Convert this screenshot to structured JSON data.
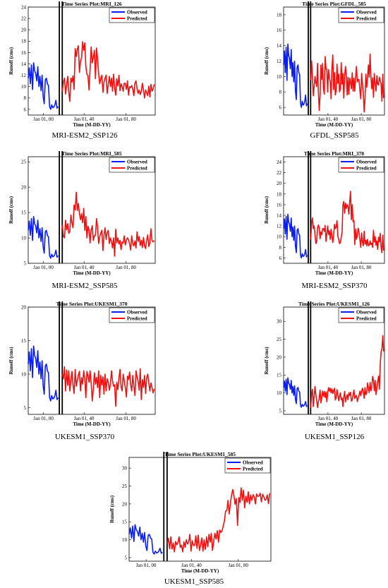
{
  "colors": {
    "observed": "#0a1ef0",
    "predicted": "#ee1111",
    "divider": "#000000",
    "axis": "#000000"
  },
  "chart_data": [
    {
      "type": "line",
      "title": "Time Series Plot:MRI_126",
      "caption": "MRI-ESM2_SSP126",
      "xlabel": "Time (M-DD-YY)",
      "ylabel": "Runoff (cms)",
      "ylim": [
        5,
        24
      ],
      "yticks": [
        "6",
        "8",
        "10",
        "12",
        "14",
        "16",
        "18",
        "20",
        "22",
        "24"
      ],
      "xticks": [
        "Jan 01, 00",
        "Jan 01, 40",
        "Jan 01, 80"
      ],
      "legend": {
        "position": "top-right",
        "entries": [
          "Observed",
          "Predicted"
        ]
      },
      "series": [
        {
          "name": "Observed",
          "values": [
            11.5,
            13.3,
            10.5,
            13.8,
            9.5,
            14.2,
            12.8,
            12.3,
            11.0,
            13.5,
            10.0,
            11.8,
            9.3,
            12.0,
            8.2,
            7.0,
            11.2,
            11.5,
            10.5,
            10.2,
            6.5,
            6.0,
            6.8,
            6.3,
            6.4,
            6.8,
            7.6,
            6.2,
            6.5
          ]
        },
        {
          "name": "Predicted",
          "values": [
            9.2,
            10.8,
            11.5,
            8.7,
            10.3,
            11.8,
            9.0,
            7.4,
            11.5,
            10.8,
            11.9,
            9.5,
            16.7,
            15.3,
            16.6,
            17.2,
            12.5,
            14.5,
            15.0,
            17.9,
            16.4,
            17.7,
            13.5,
            12.2,
            11.9,
            9.4,
            13.1,
            17.0,
            14.2,
            15.1,
            16.4,
            11.4,
            16.8,
            14.8,
            12.3,
            10.5,
            11.5,
            12.0,
            9.0,
            10.8,
            11.5,
            12.0,
            8.8,
            10.3,
            11.8,
            10.0,
            11.5,
            9.2,
            12.2,
            9.8,
            8.5,
            11.4,
            10.1,
            12.0,
            9.3,
            10.5,
            10.0,
            9.2,
            10.6,
            10.6,
            9.5,
            11.0,
            8.5,
            10.0,
            9.8,
            10.2,
            9.6,
            8.4,
            10.6,
            11.0,
            9.6,
            8.8,
            9.4,
            8.6,
            9.2,
            10.6,
            9.4,
            8.0,
            9.4,
            9.0,
            8.4,
            10.1,
            8.2,
            10.4,
            9.2,
            9.6,
            10.4
          ]
        }
      ]
    },
    {
      "type": "line",
      "title": "Time Series Plot:GFDL_585",
      "caption": "GFDL_SSP585",
      "xlabel": "Time (M-DD-YY)",
      "ylabel": "Runoff (cms)",
      "ylim": [
        5,
        19
      ],
      "yticks": [
        "6",
        "8",
        "10",
        "12",
        "14",
        "16",
        "18"
      ],
      "xticks": [
        "Jan 01, 40",
        "Jan 01, 80"
      ],
      "legend": {
        "position": "top-right",
        "entries": [
          "Observed",
          "Predicted"
        ]
      },
      "series": [
        {
          "name": "Observed",
          "values": [
            11.5,
            13.3,
            10.5,
            13.8,
            9.5,
            14.2,
            12.8,
            12.3,
            11.0,
            13.5,
            10.0,
            11.8,
            9.3,
            12.0,
            8.2,
            7.0,
            11.2,
            11.5,
            10.5,
            10.2,
            6.5,
            6.0,
            6.8,
            6.3,
            6.4,
            6.8,
            7.6,
            6.2,
            6.5
          ]
        },
        {
          "name": "Predicted",
          "values": [
            9.5,
            12.0,
            9.8,
            7.5,
            8.7,
            10.0,
            9.2,
            8.7,
            11.7,
            8.0,
            5.6,
            7.5,
            11.5,
            9.6,
            11.7,
            8.4,
            7.7,
            12.6,
            11.0,
            10.9,
            8.0,
            10.9,
            9.8,
            9.4,
            7.1,
            11.0,
            12.8,
            8.3,
            10.5,
            7.6,
            8.2,
            11.6,
            9.1,
            10.3,
            8.0,
            8.4,
            11.8,
            9.0,
            10.4,
            7.2,
            10.0,
            11.3,
            10.2,
            7.6,
            9.9,
            7.7,
            9.8,
            9.2,
            8.4,
            10.5,
            8.1,
            9.8,
            8.1,
            10.0,
            11.3,
            9.3,
            9.6,
            9.6,
            8.1,
            7.1,
            10.4,
            9.0,
            7.9,
            5.4,
            7.0,
            10.3,
            8.6,
            9.8,
            11.5,
            9.9,
            12.9,
            10.0,
            8.4,
            9.8,
            7.3,
            10.4,
            9.2,
            8.1,
            10.1,
            9.0,
            8.9,
            9.9,
            9.5,
            9.0,
            6.8,
            10.3,
            7.2
          ]
        }
      ]
    },
    {
      "type": "line",
      "title": "Time Series Plot:MRI_585",
      "caption": "MRI-ESM2_SSP585",
      "xlabel": "Time (M-DD-YY)",
      "ylabel": "Runoff (cms)",
      "ylim": [
        5,
        26
      ],
      "yticks": [
        "5",
        "10",
        "15",
        "20",
        "25"
      ],
      "xticks": [
        "Jan 01, 00",
        "Jan 01, 40",
        "Jan 01, 80"
      ],
      "legend": {
        "position": "top-right",
        "entries": [
          "Observed",
          "Predicted"
        ]
      },
      "series": [
        {
          "name": "Observed",
          "values": [
            11.5,
            13.3,
            10.5,
            13.8,
            9.5,
            14.2,
            12.8,
            12.3,
            11.0,
            13.5,
            10.0,
            11.8,
            9.3,
            12.0,
            8.2,
            7.0,
            11.2,
            11.5,
            10.5,
            10.2,
            6.5,
            6.0,
            6.8,
            6.3,
            6.4,
            6.8,
            7.6,
            6.2,
            6.5
          ]
        },
        {
          "name": "Predicted",
          "values": [
            12.5,
            10.3,
            10.0,
            13.5,
            11.6,
            12.8,
            10.9,
            11.3,
            14.5,
            13.0,
            12.0,
            16.5,
            15.5,
            19.0,
            15.4,
            16.8,
            14.8,
            13.6,
            14.8,
            13.0,
            15.8,
            11.5,
            14.2,
            10.0,
            12.3,
            11.6,
            9.0,
            11.5,
            12.4,
            9.5,
            10.4,
            10.5,
            13.8,
            12.1,
            8.9,
            10.2,
            11.0,
            11.5,
            7.5,
            10.5,
            12.0,
            9.7,
            11.0,
            11.5,
            8.9,
            10.0,
            9.3,
            8.0,
            10.0,
            6.4,
            11.7,
            9.0,
            10.0,
            8.8,
            9.5,
            7.7,
            9.2,
            9.0,
            10.4,
            8.6,
            9.6,
            10.0,
            9.6,
            8.8,
            7.6,
            10.4,
            9.0,
            8.4,
            9.4,
            8.0,
            11.2,
            9.3,
            10.3,
            8.5,
            9.5,
            8.1,
            10.1,
            8.4,
            7.9,
            9.5,
            10.6,
            8.3,
            9.0,
            11.8,
            9.5,
            9.2,
            9.5
          ]
        }
      ]
    },
    {
      "type": "line",
      "title": "Time Series Plot:MRI_370",
      "caption": "MRI-ESM2_SSP370",
      "xlabel": "Time (M-DD-YY)",
      "ylabel": "Runoff (cms)",
      "ylim": [
        5,
        25
      ],
      "yticks": [
        "6",
        "8",
        "10",
        "12",
        "14",
        "16",
        "18",
        "20",
        "22",
        "24"
      ],
      "xticks": [
        "Jan 01, 40",
        "Jan 01, 80"
      ],
      "legend": {
        "position": "top-right",
        "entries": [
          "Observed",
          "Predicted"
        ]
      },
      "series": [
        {
          "name": "Observed",
          "values": [
            11.5,
            13.3,
            10.5,
            13.8,
            9.5,
            14.2,
            12.8,
            12.3,
            11.0,
            13.5,
            10.0,
            11.8,
            9.3,
            12.0,
            8.2,
            7.0,
            11.2,
            11.5,
            10.5,
            10.2,
            6.5,
            6.0,
            6.8,
            6.3,
            6.4,
            6.8,
            7.6,
            6.2,
            6.5
          ]
        },
        {
          "name": "Predicted",
          "values": [
            9.5,
            12.6,
            13.5,
            11.5,
            12.0,
            10.4,
            8.7,
            9.0,
            11.6,
            12.2,
            11.7,
            9.6,
            10.9,
            10.4,
            11.5,
            11.5,
            11.0,
            12.1,
            9.1,
            10.5,
            12.0,
            10.4,
            11.1,
            9.5,
            11.4,
            10.1,
            8.9,
            10.2,
            12.3,
            11.5,
            11.8,
            13.0,
            10.1,
            9.5,
            8.7,
            8.9,
            9.9,
            10.8,
            16.0,
            16.6,
            14.4,
            16.3,
            15.3,
            16.0,
            15.6,
            14.2,
            16.6,
            18.5,
            13.2,
            16.0,
            12.8,
            13.0,
            8.5,
            11.4,
            9.5,
            10.2,
            11.6,
            10.8,
            9.4,
            8.0,
            10.7,
            9.0,
            8.3,
            11.0,
            8.6,
            9.3,
            8.3,
            9.5,
            8.3,
            8.4,
            9.2,
            8.5,
            8.8,
            8.0,
            11.2,
            9.0,
            10.0,
            8.4,
            9.2,
            7.6,
            9.9,
            9.0,
            10.6,
            8.0,
            7.0,
            10.3,
            7.4
          ]
        }
      ]
    },
    {
      "type": "line",
      "title": "Time Series Plot:UKESM1_370",
      "caption": "UKESM1_SSP370",
      "xlabel": "Time (M-DD-YY)",
      "ylabel": "Runoff (cms)",
      "ylim": [
        4,
        20
      ],
      "yticks": [
        "5",
        "10",
        "15",
        "20"
      ],
      "xticks": [
        "Jan 01, 00",
        "Jan 01, 40",
        "Jan 01, 80"
      ],
      "legend": {
        "position": "top-right",
        "entries": [
          "Observed",
          "Predicted"
        ]
      },
      "series": [
        {
          "name": "Observed",
          "values": [
            11.5,
            13.3,
            10.5,
            13.8,
            9.5,
            14.2,
            12.8,
            12.3,
            11.0,
            13.5,
            10.0,
            11.8,
            9.3,
            12.0,
            8.2,
            7.0,
            11.2,
            11.5,
            10.5,
            10.2,
            6.5,
            6.0,
            6.8,
            6.3,
            6.4,
            6.8,
            7.6,
            6.2,
            6.5
          ]
        },
        {
          "name": "Predicted",
          "values": [
            10.0,
            9.3,
            11.1,
            7.5,
            10.6,
            8.3,
            10.5,
            7.5,
            9.0,
            10.4,
            8.4,
            7.1,
            10.7,
            8.2,
            9.0,
            9.9,
            10.4,
            7.5,
            9.5,
            8.5,
            10.5,
            9.3,
            6.5,
            10.4,
            9.7,
            8.8,
            10.5,
            8.7,
            6.0,
            7.8,
            10.2,
            8.5,
            9.5,
            8.0,
            10.5,
            6.5,
            9.8,
            8.4,
            9.6,
            7.0,
            10.0,
            7.5,
            9.3,
            8.8,
            7.6,
            8.5,
            10.5,
            9.0,
            8.2,
            8.4,
            5.2,
            8.8,
            7.7,
            9.4,
            10.7,
            8.1,
            7.5,
            10.0,
            9.0,
            8.0,
            6.6,
            9.7,
            9.2,
            10.3,
            8.4,
            7.5,
            9.8,
            8.2,
            6.8,
            10.5,
            9.6,
            8.9,
            7.6,
            10.8,
            6.2,
            9.2,
            8.0,
            9.8,
            7.1,
            9.5,
            10.0,
            8.7,
            7.5,
            8.7,
            8.0,
            7.2,
            7.8
          ]
        }
      ]
    },
    {
      "type": "line",
      "title": "Time Series Plot:UKESM1_126",
      "caption": "UKESM1_SSP126",
      "xlabel": "Time (M-DD-YY)",
      "ylabel": "Runoff (cms)",
      "ylim": [
        4,
        34
      ],
      "yticks": [
        "5",
        "10",
        "15",
        "20",
        "25",
        "30"
      ],
      "xticks": [
        "Jan 01, 40",
        "Jan 01, 80"
      ],
      "legend": {
        "position": "top-right",
        "entries": [
          "Observed",
          "Predicted"
        ]
      },
      "series": [
        {
          "name": "Observed",
          "values": [
            11.5,
            13.3,
            10.5,
            13.8,
            9.5,
            14.2,
            12.8,
            12.3,
            11.0,
            13.5,
            10.0,
            11.8,
            9.3,
            12.0,
            8.2,
            7.0,
            11.2,
            11.5,
            10.5,
            10.2,
            6.5,
            6.0,
            6.8,
            6.3,
            6.4,
            6.8,
            7.6,
            6.2,
            6.5
          ]
        },
        {
          "name": "Predicted",
          "values": [
            5.8,
            9.8,
            11.0,
            6.2,
            9.0,
            11.8,
            9.5,
            7.9,
            5.9,
            7.5,
            8.5,
            10.8,
            7.2,
            8.7,
            10.5,
            9.1,
            10.4,
            8.7,
            10.3,
            7.5,
            10.1,
            11.5,
            10.5,
            11.3,
            10.0,
            11.1,
            9.8,
            10.6,
            11.3,
            8.0,
            8.8,
            10.9,
            9.5,
            7.8,
            9.0,
            10.0,
            8.1,
            8.6,
            6.2,
            8.8,
            10.4,
            7.5,
            8.7,
            9.5,
            8.1,
            10.0,
            9.3,
            10.2,
            7.7,
            8.0,
            9.5,
            10.8,
            8.4,
            9.0,
            9.3,
            7.6,
            8.5,
            9.3,
            10.5,
            9.2,
            10.5,
            11.3,
            10.3,
            8.5,
            11.5,
            9.5,
            10.0,
            12.8,
            11.4,
            10.1,
            12.9,
            10.6,
            11.7,
            14.6,
            13.6,
            10.6,
            13.5,
            9.5,
            11.3,
            13.1,
            14.7,
            11.0,
            18.0,
            21.5,
            22.3,
            26.0,
            21.6
          ]
        }
      ]
    },
    {
      "type": "line",
      "title": "Time Series Plot:UKESM1_585",
      "caption": "UKESM1_SSP585",
      "xlabel": "Time (M-DD-YY)",
      "ylabel": "Runoff (cms)",
      "ylim": [
        4,
        33
      ],
      "yticks": [
        "5",
        "10",
        "15",
        "20",
        "25",
        "30"
      ],
      "xticks": [
        "Jan 01, 00",
        "Jan 01, 40",
        "Jan 01, 80"
      ],
      "legend": {
        "position": "top-right",
        "entries": [
          "Observed",
          "Predicted"
        ]
      },
      "series": [
        {
          "name": "Observed",
          "values": [
            11.5,
            13.3,
            10.5,
            13.8,
            9.5,
            14.2,
            12.8,
            12.3,
            11.0,
            13.5,
            10.0,
            11.8,
            9.3,
            12.0,
            8.2,
            7.0,
            11.2,
            11.5,
            10.5,
            10.2,
            6.5,
            6.0,
            6.8,
            6.3,
            6.4,
            6.8,
            7.6,
            6.2,
            6.5
          ]
        },
        {
          "name": "Predicted",
          "values": [
            9.0,
            10.4,
            7.5,
            10.8,
            7.4,
            9.1,
            6.6,
            9.5,
            8.6,
            9.3,
            10.8,
            7.8,
            8.5,
            6.6,
            9.4,
            7.9,
            10.0,
            8.8,
            9.4,
            11.5,
            6.8,
            9.7,
            8.4,
            8.4,
            11.1,
            7.6,
            11.3,
            7.0,
            8.4,
            10.5,
            6.8,
            10.0,
            7.3,
            10.8,
            8.0,
            11.5,
            9.3,
            11.8,
            7.0,
            9.5,
            11.8,
            10.2,
            12.5,
            9.3,
            12.7,
            12.0,
            12.5,
            13.8,
            15.2,
            18.0,
            18.1,
            21.0,
            17.2,
            20.3,
            22.5,
            24.0,
            22.3,
            19.9,
            21.5,
            14.0,
            21.8,
            20.4,
            24.5,
            21.0,
            23.8,
            18.9,
            22.1,
            20.5,
            23.4,
            20.0,
            22.5,
            21.0,
            22.6,
            21.9,
            20.0,
            22.8,
            22.1,
            22.2,
            23.0,
            20.6,
            22.7,
            22.0,
            21.0,
            21.3,
            22.5,
            20.1,
            23.0
          ]
        }
      ]
    }
  ]
}
